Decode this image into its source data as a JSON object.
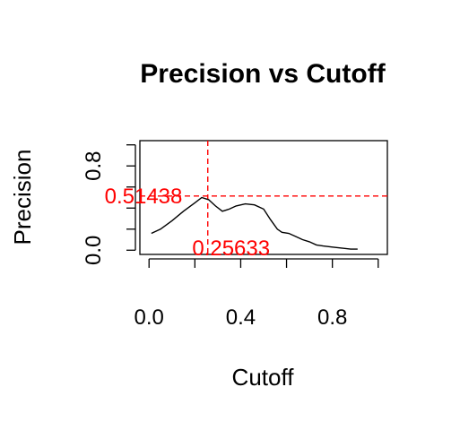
{
  "chart_data": {
    "type": "line",
    "title": "Precision vs Cutoff",
    "xlabel": "Cutoff",
    "ylabel": "Precision",
    "xlim": [
      -0.04,
      1.04
    ],
    "ylim": [
      -0.04,
      1.04
    ],
    "xticks": [
      0.0,
      0.2,
      0.4,
      0.6,
      0.8,
      1.0
    ],
    "xtick_labels": [
      "0.0",
      "",
      "0.4",
      "",
      "0.8",
      ""
    ],
    "yticks": [
      0.0,
      0.2,
      0.4,
      0.6,
      0.8,
      1.0
    ],
    "ytick_labels": [
      "0.0",
      "",
      "",
      "",
      "0.8",
      ""
    ],
    "series": [
      {
        "color": "#000000",
        "x": [
          0.01,
          0.05,
          0.1,
          0.15,
          0.2,
          0.23,
          0.26,
          0.29,
          0.32,
          0.35,
          0.38,
          0.42,
          0.46,
          0.5,
          0.53,
          0.56,
          0.58,
          0.61,
          0.64,
          0.67,
          0.7,
          0.73,
          0.76,
          0.8,
          0.84,
          0.88,
          0.91
        ],
        "y": [
          0.16,
          0.2,
          0.28,
          0.37,
          0.45,
          0.5,
          0.48,
          0.42,
          0.37,
          0.39,
          0.42,
          0.44,
          0.43,
          0.39,
          0.29,
          0.2,
          0.17,
          0.16,
          0.13,
          0.1,
          0.08,
          0.05,
          0.04,
          0.03,
          0.02,
          0.01,
          0.01
        ]
      }
    ],
    "reference_lines": {
      "color": "#ff0000",
      "vertical_x": 0.25633,
      "horizontal_y": 0.51438
    },
    "annotations": {
      "precision_value_label": "0.51438",
      "cutoff_value_label": "0.25633",
      "color": "#ff0000"
    },
    "grid": false,
    "legend": "none"
  }
}
